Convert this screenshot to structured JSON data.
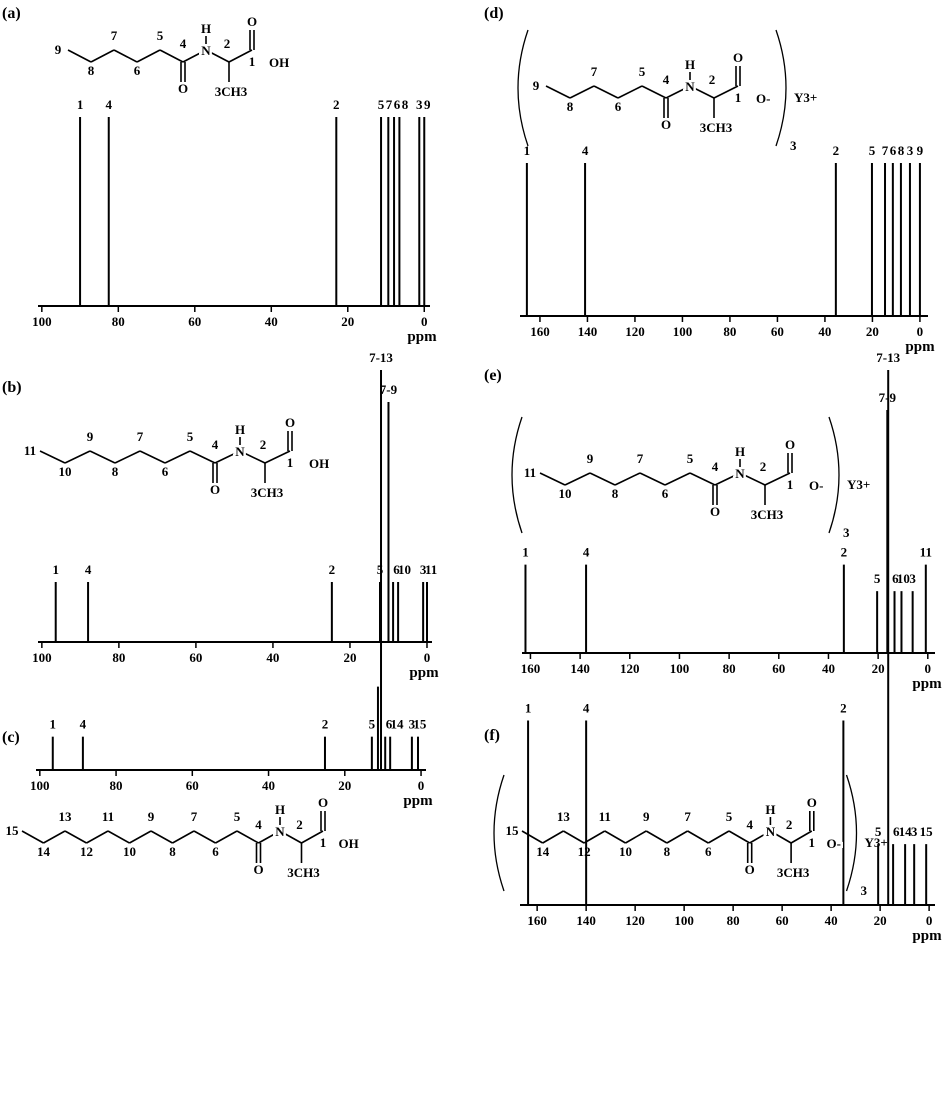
{
  "chart_data": [
    {
      "type": "stick",
      "panel": "(a)",
      "structure": {
        "chain": [
          "9",
          "8",
          "7",
          "6",
          "5"
        ],
        "carbonyl": "4",
        "carbonyl_oxygen": "O",
        "nitrogen": "N",
        "hydrogen": "H",
        "alpha": "2",
        "carboxyl": "1",
        "carboxyl_oxygen": "O",
        "hydroxyl": "OH",
        "methyl": "3CH3"
      },
      "x": [
        90,
        82.5,
        23,
        11.3,
        9.4,
        7.9,
        6.5,
        1.3,
        0
      ],
      "values": [
        1,
        1,
        1,
        1,
        1,
        1,
        1,
        1,
        1
      ],
      "peak_labels": [
        "1",
        "4",
        "2",
        "5",
        "7",
        "6",
        "8",
        "3",
        "9"
      ],
      "xlim": [
        101,
        -1.5
      ],
      "xticks": [
        100,
        80,
        60,
        40,
        20,
        0
      ],
      "ylim": [
        0,
        1
      ],
      "xlabel": "ppm",
      "color": "#000000"
    },
    {
      "type": "stick",
      "panel": "(b)",
      "structure": {
        "chain": [
          "11",
          "10",
          "9",
          "8",
          "7",
          "6",
          "5"
        ],
        "carbonyl": "4",
        "carbonyl_oxygen": "O",
        "nitrogen": "N",
        "hydrogen": "H",
        "alpha": "2",
        "carboxyl": "1",
        "carboxyl_oxygen": "O",
        "hydroxyl": "OH",
        "methyl": "3CH3"
      },
      "x": [
        96.4,
        88,
        24.7,
        12.2,
        10,
        8.8,
        7.5,
        1,
        0
      ],
      "values": [
        1,
        1,
        1,
        1,
        4,
        1,
        1,
        1,
        1
      ],
      "peak_labels": [
        "1",
        "4",
        "2",
        "5",
        "7-9",
        "6",
        "10",
        "3",
        "11"
      ],
      "xlim": [
        101,
        -1.3
      ],
      "xticks": [
        100,
        80,
        60,
        40,
        20,
        0
      ],
      "ylim": [
        0,
        4
      ],
      "xlabel": "ppm",
      "color": "#000000"
    },
    {
      "type": "stick",
      "panel": "(c)",
      "structure": {
        "chain": [
          "15",
          "14",
          "13",
          "12",
          "11",
          "10",
          "9",
          "8",
          "7",
          "6",
          "5"
        ],
        "carbonyl": "4",
        "carbonyl_oxygen": "O",
        "nitrogen": "N",
        "hydrogen": "H",
        "alpha": "2",
        "carboxyl": "1",
        "carboxyl_oxygen": "O",
        "hydroxyl": "OH",
        "methyl": "3CH3"
      },
      "x": [
        96.6,
        88.7,
        25.2,
        12.9,
        11.3,
        10.5,
        9.4,
        8.1,
        2.4,
        0.8
      ],
      "values": [
        1,
        1,
        1,
        1,
        2.5,
        12,
        1,
        1,
        1,
        1
      ],
      "peak_labels": [
        "1",
        "4",
        "2",
        "5",
        null,
        "7-13",
        "6",
        "14",
        "3",
        "15"
      ],
      "xlim": [
        101,
        -1.3
      ],
      "xticks": [
        100,
        80,
        60,
        40,
        20,
        0
      ],
      "ylim": [
        0,
        12
      ],
      "xlabel": "ppm",
      "color": "#000000"
    },
    {
      "type": "stick",
      "panel": "(d)",
      "structure": {
        "chain": [
          "9",
          "8",
          "7",
          "6",
          "5"
        ],
        "carbonyl": "4",
        "carbonyl_oxygen": "O",
        "nitrogen": "N",
        "hydrogen": "H",
        "alpha": "2",
        "carboxyl": "1",
        "carboxyl_oxygen": "O",
        "hydroxyl": "O-",
        "methyl": "3CH3",
        "counterion": "Y3+",
        "count": "3"
      },
      "x": [
        165.5,
        141,
        35.4,
        20.2,
        14.7,
        11.4,
        8,
        4.2,
        0
      ],
      "values": [
        1,
        1,
        1,
        1,
        1,
        1,
        1,
        1,
        1
      ],
      "peak_labels": [
        "1",
        "4",
        "2",
        "5",
        "7",
        "6",
        "8",
        "3",
        "9"
      ],
      "xlim": [
        168.4,
        -3.4
      ],
      "xticks": [
        160,
        140,
        120,
        100,
        80,
        60,
        40,
        20,
        0
      ],
      "ylim": [
        0,
        1
      ],
      "xlabel": "ppm",
      "color": "#000000"
    },
    {
      "type": "stick",
      "panel": "(e)",
      "structure": {
        "chain": [
          "11",
          "10",
          "9",
          "8",
          "7",
          "6",
          "5"
        ],
        "carbonyl": "4",
        "carbonyl_oxygen": "O",
        "nitrogen": "N",
        "hydrogen": "H",
        "alpha": "2",
        "carboxyl": "1",
        "carboxyl_oxygen": "O",
        "hydroxyl": "O-",
        "methyl": "3CH3",
        "counterion": "Y3+",
        "count": "3"
      },
      "x": [
        162,
        137.6,
        33.8,
        20.4,
        16.3,
        13.4,
        10.6,
        6.1,
        0.8
      ],
      "values": [
        1,
        1,
        1,
        0.7,
        2.75,
        0.7,
        0.7,
        0.7,
        1
      ],
      "peak_labels": [
        "1",
        "4",
        "2",
        "5",
        "7-9",
        "6",
        "10",
        "3",
        "11"
      ],
      "xlim": [
        163.4,
        -2.9
      ],
      "xticks": [
        160,
        140,
        120,
        100,
        80,
        60,
        40,
        20,
        0
      ],
      "ylim": [
        0,
        2.75
      ],
      "xlabel": "ppm",
      "color": "#000000"
    },
    {
      "type": "stick",
      "panel": "(f)",
      "structure": {
        "chain": [
          "15",
          "14",
          "13",
          "12",
          "11",
          "10",
          "9",
          "8",
          "7",
          "6",
          "5"
        ],
        "carbonyl": "4",
        "carbonyl_oxygen": "O",
        "nitrogen": "N",
        "hydrogen": "H",
        "alpha": "2",
        "carboxyl": "1",
        "carboxyl_oxygen": "O",
        "hydroxyl": "O-",
        "methyl": "3CH3",
        "counterion": "Y3+",
        "count": "3"
      },
      "x": [
        163.7,
        140,
        35,
        20.8,
        16.7,
        14.7,
        9.8,
        6.1,
        1.2
      ],
      "values": [
        1,
        1,
        1,
        0.33,
        2.9,
        0.33,
        0.33,
        0.33,
        0.33
      ],
      "peak_labels": [
        "1",
        "4",
        "2",
        "5",
        "7-13",
        "6",
        "14",
        "3",
        "15"
      ],
      "xlim": [
        167,
        -2.4
      ],
      "xticks": [
        160,
        140,
        120,
        100,
        80,
        60,
        40,
        20,
        0
      ],
      "ylim": [
        0,
        2.9
      ],
      "xlabel": "ppm",
      "color": "#000000"
    }
  ]
}
